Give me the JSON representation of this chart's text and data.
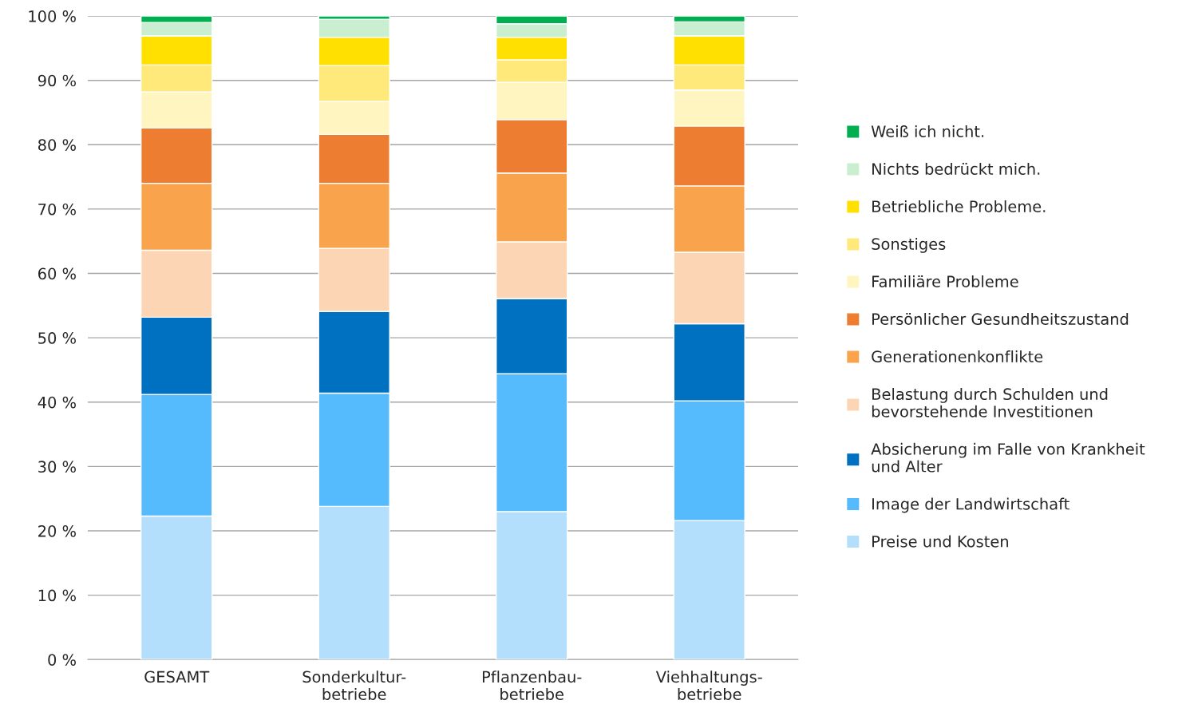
{
  "chart_data": {
    "type": "bar",
    "stacked": true,
    "categories": [
      "GESAMT",
      "Sonderkultur-\nbetriebe",
      "Pflanzenbau-\nbetriebe",
      "Viehhaltungs-\nbetriebe"
    ],
    "series": [
      {
        "name": "Preise und Kosten",
        "color": "#b3dffd",
        "values": [
          22.3,
          23.8,
          23.0,
          21.6
        ]
      },
      {
        "name": "Image der Landwirtschaft",
        "color": "#56bbfd",
        "values": [
          18.9,
          17.6,
          21.4,
          18.6
        ]
      },
      {
        "name": "Absicherung im Falle von Krankheit\nund Alter",
        "color": "#0070c0",
        "values": [
          12.0,
          12.7,
          11.7,
          12.0
        ]
      },
      {
        "name": "Belastung durch Schulden und\nbevorstehende Investitionen",
        "color": "#fcd5b4",
        "values": [
          10.4,
          9.8,
          8.8,
          11.1
        ]
      },
      {
        "name": "Generationenkonflikte",
        "color": "#f9a44c",
        "values": [
          10.4,
          10.1,
          10.7,
          10.3
        ]
      },
      {
        "name": "Persönlicher Gesundheitszustand",
        "color": "#ed7d31",
        "values": [
          8.6,
          7.6,
          8.3,
          9.3
        ]
      },
      {
        "name": "Familiäre Probleme",
        "color": "#fff5c0",
        "values": [
          5.6,
          5.1,
          5.8,
          5.6
        ]
      },
      {
        "name": "Sonstiges",
        "color": "#ffe97a",
        "values": [
          4.2,
          5.6,
          3.5,
          3.9
        ]
      },
      {
        "name": "Betriebliche Probleme.",
        "color": "#ffe000",
        "values": [
          4.5,
          4.4,
          3.5,
          4.5
        ]
      },
      {
        "name": "Nichts bedrückt mich.",
        "color": "#c9efd0",
        "values": [
          2.1,
          2.8,
          2.1,
          2.2
        ]
      },
      {
        "name": "Weiß ich nicht.",
        "color": "#00b050",
        "values": [
          1.0,
          0.5,
          1.2,
          0.9
        ]
      }
    ],
    "ylim": [
      0,
      100
    ],
    "yticks": [
      {
        "value": 0,
        "label": "0 %"
      },
      {
        "value": 10,
        "label": "10 %"
      },
      {
        "value": 20,
        "label": "20 %"
      },
      {
        "value": 30,
        "label": "30 %"
      },
      {
        "value": 40,
        "label": "40 %"
      },
      {
        "value": 50,
        "label": "50 %"
      },
      {
        "value": 60,
        "label": "60 %"
      },
      {
        "value": 70,
        "label": "70 %"
      },
      {
        "value": 80,
        "label": "80 %"
      },
      {
        "value": 90,
        "label": "90 %"
      },
      {
        "value": 100,
        "label": "100 %"
      }
    ],
    "grid": "y",
    "legend": "right"
  }
}
